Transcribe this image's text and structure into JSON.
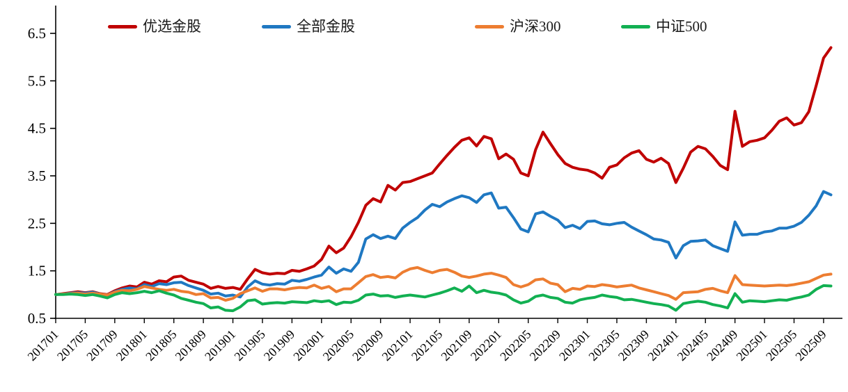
{
  "chart_data": {
    "type": "line",
    "title": "",
    "x_start": "2017-01",
    "x_freq": "monthly",
    "x_tick_labels": [
      "201701",
      "201705",
      "201709",
      "201801",
      "201805",
      "201809",
      "201901",
      "201905",
      "201909",
      "202001",
      "202005",
      "202009",
      "202101",
      "202105",
      "202109",
      "202201",
      "202205",
      "202209",
      "202301",
      "202305",
      "202309",
      "202401",
      "202405",
      "202409",
      "202501",
      "202505",
      "202509"
    ],
    "y_ticks": [
      0.5,
      1.5,
      2.5,
      3.5,
      4.5,
      5.5,
      6.5
    ],
    "ylim": [
      0.5,
      6.6
    ],
    "grid": false,
    "legend_position": "top",
    "axis_color": "#000000",
    "series": [
      {
        "name": "优选金股",
        "color": "#C00000",
        "values": [
          1.0,
          1.02,
          1.04,
          1.06,
          1.04,
          1.06,
          1.02,
          1.0,
          1.08,
          1.14,
          1.18,
          1.16,
          1.26,
          1.22,
          1.29,
          1.27,
          1.37,
          1.39,
          1.3,
          1.26,
          1.22,
          1.13,
          1.17,
          1.13,
          1.15,
          1.11,
          1.33,
          1.53,
          1.46,
          1.43,
          1.45,
          1.44,
          1.51,
          1.49,
          1.54,
          1.6,
          1.74,
          2.02,
          1.88,
          1.98,
          2.22,
          2.52,
          2.88,
          3.02,
          2.95,
          3.3,
          3.2,
          3.36,
          3.38,
          3.44,
          3.5,
          3.56,
          3.75,
          3.93,
          4.1,
          4.25,
          4.3,
          4.13,
          4.33,
          4.28,
          3.86,
          3.96,
          3.85,
          3.56,
          3.5,
          4.05,
          4.42,
          4.18,
          3.95,
          3.76,
          3.68,
          3.64,
          3.62,
          3.56,
          3.45,
          3.68,
          3.73,
          3.88,
          3.98,
          4.03,
          3.85,
          3.79,
          3.87,
          3.76,
          3.36,
          3.66,
          4.0,
          4.12,
          4.07,
          3.91,
          3.72,
          3.63,
          4.86,
          4.12,
          4.22,
          4.25,
          4.3,
          4.46,
          4.65,
          4.72,
          4.57,
          4.62,
          4.85,
          5.4,
          5.98,
          6.2
        ]
      },
      {
        "name": "全部金股",
        "color": "#1F78C2",
        "values": [
          1.0,
          1.01,
          1.03,
          1.04,
          1.03,
          1.05,
          1.01,
          0.99,
          1.06,
          1.11,
          1.14,
          1.12,
          1.21,
          1.17,
          1.23,
          1.21,
          1.25,
          1.26,
          1.19,
          1.14,
          1.09,
          1.01,
          1.03,
          0.97,
          0.99,
          0.95,
          1.16,
          1.29,
          1.22,
          1.2,
          1.23,
          1.22,
          1.3,
          1.28,
          1.32,
          1.37,
          1.41,
          1.58,
          1.45,
          1.54,
          1.49,
          1.68,
          2.17,
          2.26,
          2.18,
          2.23,
          2.18,
          2.4,
          2.52,
          2.62,
          2.78,
          2.9,
          2.85,
          2.95,
          3.02,
          3.08,
          3.04,
          2.94,
          3.1,
          3.14,
          2.82,
          2.84,
          2.62,
          2.38,
          2.32,
          2.7,
          2.74,
          2.65,
          2.57,
          2.41,
          2.46,
          2.39,
          2.54,
          2.55,
          2.49,
          2.47,
          2.5,
          2.52,
          2.42,
          2.34,
          2.26,
          2.17,
          2.15,
          2.1,
          1.77,
          2.03,
          2.12,
          2.13,
          2.15,
          2.03,
          1.97,
          1.91,
          2.53,
          2.25,
          2.27,
          2.27,
          2.32,
          2.34,
          2.4,
          2.4,
          2.44,
          2.52,
          2.67,
          2.87,
          3.17,
          3.1
        ]
      },
      {
        "name": "沪深300",
        "color": "#ED7D31",
        "values": [
          1.0,
          1.01,
          1.02,
          1.03,
          1.01,
          1.03,
          1.01,
          0.99,
          1.05,
          1.09,
          1.08,
          1.11,
          1.17,
          1.14,
          1.11,
          1.09,
          1.11,
          1.07,
          1.05,
          1.0,
          1.02,
          0.93,
          0.94,
          0.88,
          0.92,
          1.02,
          1.08,
          1.14,
          1.07,
          1.12,
          1.12,
          1.1,
          1.13,
          1.15,
          1.14,
          1.2,
          1.13,
          1.17,
          1.06,
          1.12,
          1.12,
          1.25,
          1.38,
          1.42,
          1.36,
          1.38,
          1.35,
          1.47,
          1.54,
          1.57,
          1.51,
          1.46,
          1.51,
          1.53,
          1.47,
          1.39,
          1.36,
          1.39,
          1.43,
          1.45,
          1.41,
          1.36,
          1.21,
          1.16,
          1.21,
          1.31,
          1.33,
          1.24,
          1.21,
          1.06,
          1.13,
          1.11,
          1.18,
          1.17,
          1.21,
          1.19,
          1.16,
          1.18,
          1.2,
          1.14,
          1.1,
          1.06,
          1.02,
          0.98,
          0.9,
          1.04,
          1.05,
          1.06,
          1.11,
          1.13,
          1.08,
          1.04,
          1.4,
          1.21,
          1.2,
          1.19,
          1.18,
          1.19,
          1.2,
          1.19,
          1.21,
          1.24,
          1.27,
          1.34,
          1.41,
          1.43
        ]
      },
      {
        "name": "中证500",
        "color": "#12B052",
        "values": [
          1.0,
          1.0,
          1.01,
          1.0,
          0.98,
          1.0,
          0.97,
          0.93,
          1.0,
          1.04,
          1.02,
          1.04,
          1.07,
          1.04,
          1.08,
          1.03,
          0.99,
          0.92,
          0.88,
          0.84,
          0.81,
          0.72,
          0.74,
          0.67,
          0.66,
          0.74,
          0.87,
          0.89,
          0.8,
          0.82,
          0.83,
          0.82,
          0.85,
          0.84,
          0.83,
          0.87,
          0.85,
          0.87,
          0.79,
          0.84,
          0.83,
          0.88,
          0.99,
          1.01,
          0.97,
          0.98,
          0.94,
          0.97,
          0.99,
          0.97,
          0.95,
          0.99,
          1.03,
          1.08,
          1.14,
          1.07,
          1.18,
          1.04,
          1.09,
          1.05,
          1.03,
          0.99,
          0.89,
          0.82,
          0.86,
          0.96,
          0.99,
          0.94,
          0.92,
          0.84,
          0.82,
          0.89,
          0.92,
          0.94,
          0.99,
          0.96,
          0.94,
          0.89,
          0.9,
          0.87,
          0.84,
          0.81,
          0.79,
          0.76,
          0.67,
          0.81,
          0.84,
          0.86,
          0.84,
          0.79,
          0.76,
          0.72,
          1.02,
          0.84,
          0.87,
          0.86,
          0.85,
          0.87,
          0.89,
          0.88,
          0.92,
          0.95,
          0.99,
          1.11,
          1.19,
          1.18
        ]
      }
    ]
  }
}
